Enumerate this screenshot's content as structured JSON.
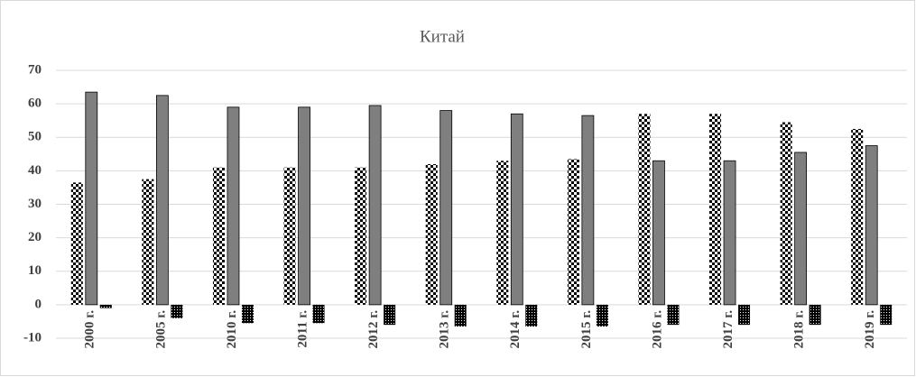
{
  "chart_data": {
    "type": "bar",
    "title": "Китай",
    "categories": [
      "2000 г.",
      "2005 г.",
      "2010 г.",
      "2011 г.",
      "2012 г.",
      "2013 г.",
      "2014 г.",
      "2015 г.",
      "2016 г.",
      "2017 г.",
      "2018 г.",
      "2019 г."
    ],
    "series": [
      {
        "color": "#000000",
        "pattern": "checker",
        "values": [
          36.5,
          37.5,
          41,
          41,
          41,
          42,
          43,
          43.5,
          57,
          57,
          54.5,
          52.5
        ]
      },
      {
        "color": "#7f7f7f",
        "pattern": "solid",
        "values": [
          63.5,
          62.5,
          59,
          59,
          59.5,
          58,
          57,
          56.5,
          43,
          43,
          45.5,
          47.5
        ]
      },
      {
        "color": "#000000",
        "pattern": "dots",
        "values": [
          -1,
          -4,
          -5.5,
          -5.5,
          -6,
          -6.5,
          -6.5,
          -6.5,
          -6,
          -6,
          -6,
          -6
        ]
      }
    ],
    "ylim": [
      -10,
      70
    ],
    "yticks": [
      -10,
      0,
      10,
      20,
      30,
      40,
      50,
      60,
      70
    ],
    "grid": true
  }
}
